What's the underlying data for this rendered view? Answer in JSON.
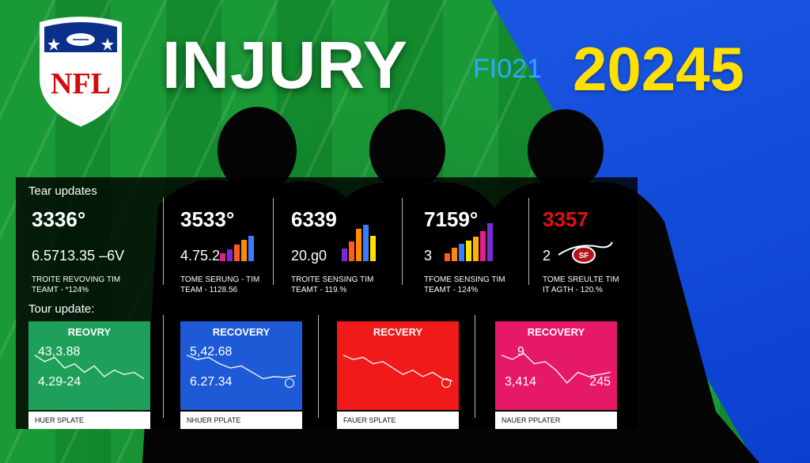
{
  "header": {
    "logo_text": "NFL",
    "title": "INJURY",
    "code": "FI021",
    "year": "20245"
  },
  "colors": {
    "field_green": "#1a9a36",
    "blue": "#1f5ee8",
    "yellow": "#ffe000",
    "card_green": "#1fa05a",
    "card_blue": "#1e5ad6",
    "card_red": "#f01a1a",
    "card_pink": "#e51968"
  },
  "team_section": {
    "label": "Tear updates",
    "stats": [
      {
        "big": "3336°",
        "mid": "6.5713.35 –6V",
        "line1": "TROITE REVOVING TIM",
        "line2": "TEAMT - *124%",
        "bars": [],
        "accent": ""
      },
      {
        "big": "3533°",
        "mid": "4.75.2",
        "line1": "TOME SERUNG - TIM",
        "line2": "TEAM - 1128.56",
        "bars": [
          0.25,
          0.4,
          0.55,
          0.7,
          0.85
        ],
        "accent": ""
      },
      {
        "big": "6339",
        "mid": "20.g0",
        "line1": "TROITE SENSING TIM",
        "line2": "TEAMT - 119.%",
        "bars": [
          0.35,
          0.55,
          0.9,
          1.0,
          0.7
        ],
        "accent": ""
      },
      {
        "big": "7159°",
        "mid": "3",
        "line1": "TFOME SENSING TIM",
        "line2": "TEAMT - 124%",
        "bars": [
          0.2,
          0.35,
          0.45,
          0.55,
          0.65,
          0.8,
          1.0
        ],
        "accent": ""
      },
      {
        "big": "3357",
        "mid": "2",
        "line1": "TOME SREULTE TIM",
        "line2": "IT AGTH - 120.%",
        "bars": [],
        "accent": "#e01010"
      }
    ]
  },
  "tour_section": {
    "label": "Tour update:",
    "cards": [
      {
        "title": "REOVRY",
        "v1": "43,3.88",
        "v2": "4.29-24",
        "v3": "",
        "footer": "HUER SPLATE",
        "color": "#1fa05a",
        "trend": [
          0.2,
          0.35,
          0.25,
          0.5,
          0.4,
          0.6,
          0.45,
          0.7,
          0.55,
          0.65,
          0.6,
          0.75
        ]
      },
      {
        "title": "RECOVERY",
        "v1": "5,42.68",
        "v2": "6.27.34",
        "v3": "",
        "footer": "NHUER PPLATE",
        "color": "#1e5ad6",
        "trend": [
          0.2,
          0.3,
          0.25,
          0.4,
          0.5,
          0.45,
          0.6,
          0.75,
          0.7,
          0.72,
          0.68
        ]
      },
      {
        "title": "RECVERY",
        "v1": "",
        "v2": "",
        "v3": "",
        "footer": "FAUER SPLATE",
        "color": "#f01a1a",
        "trend": [
          0.2,
          0.3,
          0.25,
          0.4,
          0.35,
          0.5,
          0.65,
          0.55,
          0.7,
          0.6,
          0.75,
          0.8
        ]
      },
      {
        "title": "RECOVERY",
        "v1": "9",
        "v2": "3,414",
        "v3": "245",
        "footer": "NAUER PPLATER",
        "color": "#e51968",
        "trend": [
          0.2,
          0.3,
          0.15,
          0.4,
          0.35,
          0.55,
          0.85,
          0.6,
          0.7,
          0.65,
          0.6
        ]
      }
    ]
  }
}
